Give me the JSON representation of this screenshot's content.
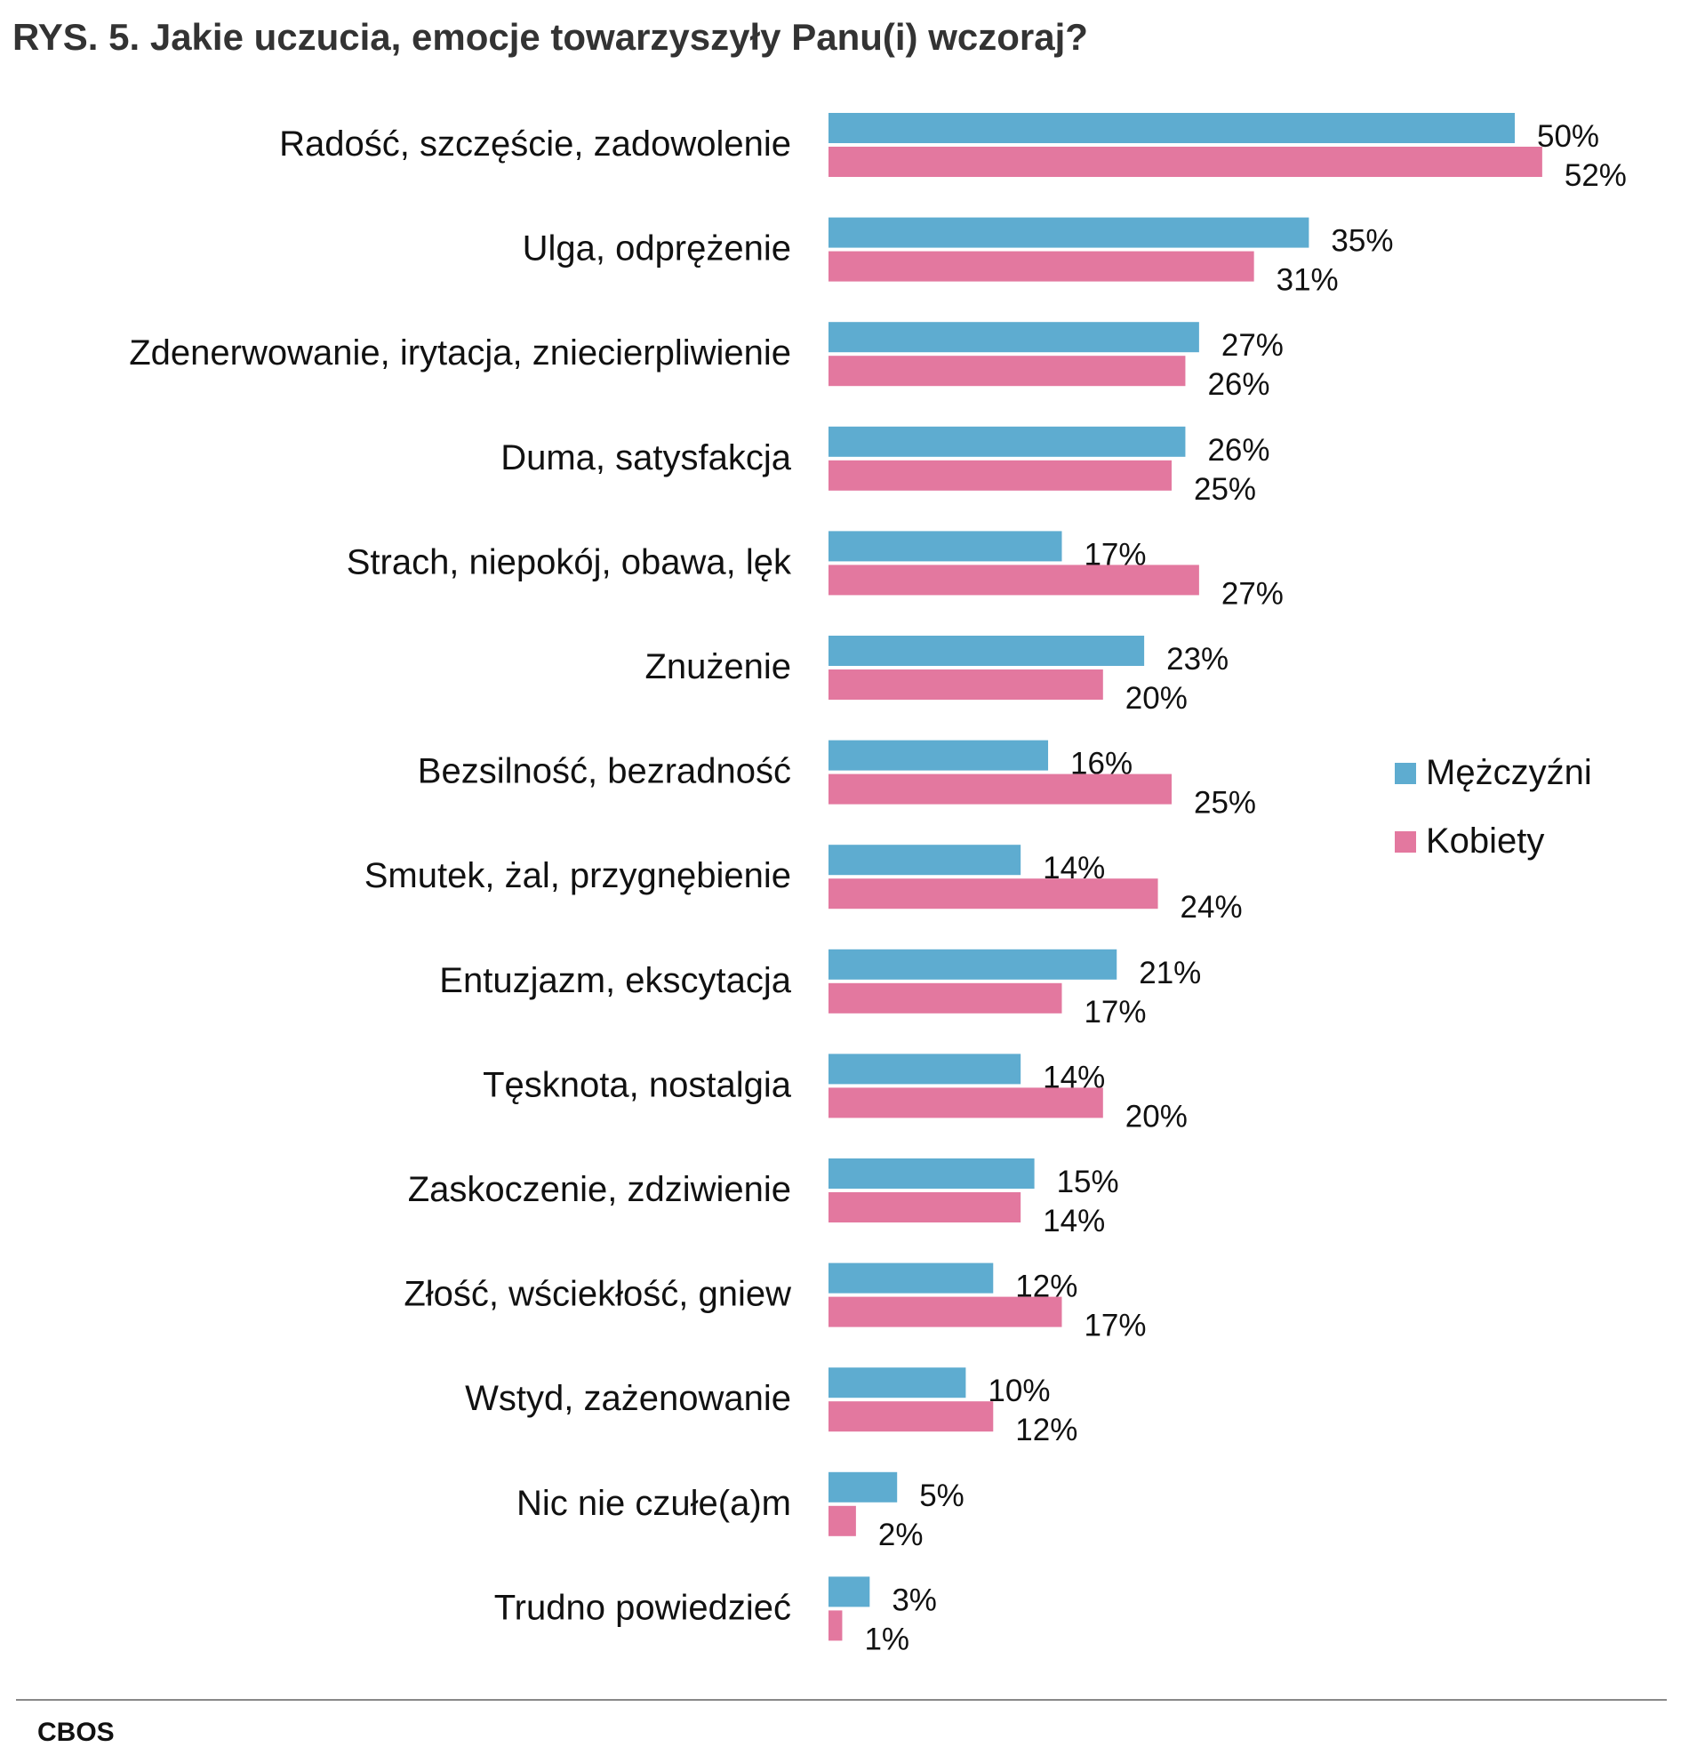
{
  "chart_data": {
    "type": "bar",
    "orientation": "horizontal",
    "title": "RYS. 5. Jakie uczucia, emocje towarzyszyły Panu(i) wczoraj?",
    "categories": [
      "Radość, szczęście, zadowolenie",
      "Ulga, odprężenie",
      "Zdenerwowanie, irytacja, zniecierpliwienie",
      "Duma, satysfakcja",
      "Strach, niepokój, obawa, lęk",
      "Znużenie",
      "Bezsilność, bezradność",
      "Smutek, żal, przygnębienie",
      "Entuzjazm, ekscytacja",
      "Tęsknota, nostalgia",
      "Zaskoczenie, zdziwienie",
      "Złość, wściekłość, gniew",
      "Wstyd, zażenowanie",
      "Nic nie czułe(a)m",
      "Trudno powiedzieć"
    ],
    "series": [
      {
        "name": "Mężczyźni",
        "color": "#5eacd0",
        "values": [
          50,
          35,
          27,
          26,
          17,
          23,
          16,
          14,
          21,
          14,
          15,
          12,
          10,
          5,
          3
        ]
      },
      {
        "name": "Kobiety",
        "color": "#e3789f",
        "values": [
          52,
          31,
          26,
          25,
          27,
          20,
          25,
          24,
          17,
          20,
          14,
          17,
          12,
          2,
          1
        ]
      }
    ],
    "value_suffix": "%",
    "legend_placement": "right",
    "grid": false
  },
  "source": "CBOS"
}
